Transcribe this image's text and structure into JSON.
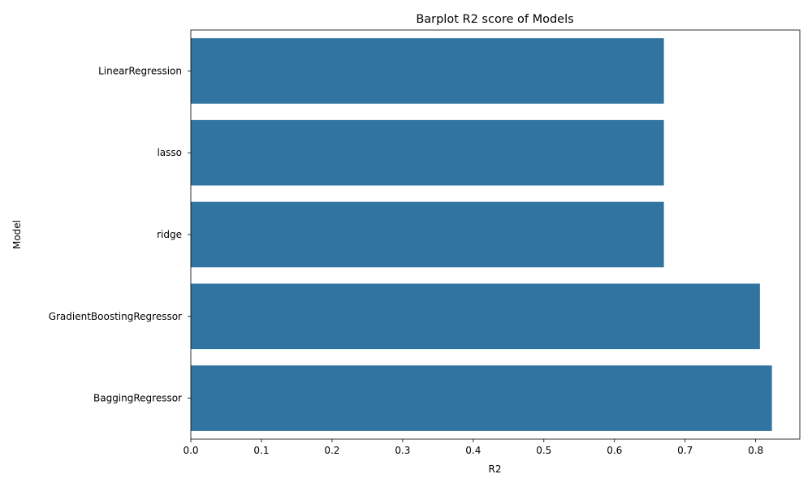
{
  "chart_data": {
    "type": "bar",
    "orientation": "horizontal",
    "title": "Barplot R2 score of Models",
    "xlabel": "R2",
    "ylabel": "Model",
    "categories": [
      "LinearRegression",
      "lasso",
      "ridge",
      "GradientBoostingRegressor",
      "BaggingRegressor"
    ],
    "values": [
      0.67,
      0.67,
      0.67,
      0.806,
      0.823
    ],
    "xlim": [
      0,
      0.8625
    ],
    "xticks": [
      0.0,
      0.1,
      0.2,
      0.3,
      0.4,
      0.5,
      0.6,
      0.7,
      0.8
    ],
    "xtick_labels": [
      "0.0",
      "0.1",
      "0.2",
      "0.3",
      "0.4",
      "0.5",
      "0.6",
      "0.7",
      "0.8"
    ],
    "grid": false,
    "bar_color": "#3274a1"
  }
}
